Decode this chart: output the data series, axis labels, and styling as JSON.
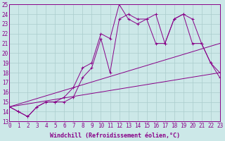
{
  "bg_color": "#cce8e8",
  "line_color": "#880088",
  "grid_color": "#aacccc",
  "xlabel": "Windchill (Refroidissement éolien,°C)",
  "xlabel_fontsize": 6.0,
  "tick_fontsize": 5.5,
  "xmin": 0,
  "xmax": 23,
  "ymin": 13,
  "ymax": 25,
  "series": [
    {
      "x": [
        0,
        1,
        2,
        3,
        4,
        5,
        6,
        7,
        8,
        9,
        10,
        11,
        12,
        13,
        14,
        15,
        16,
        17,
        18,
        19,
        20,
        21,
        22,
        23
      ],
      "y": [
        14.5,
        14.0,
        13.5,
        14.5,
        15.0,
        15.0,
        15.0,
        15.5,
        17.5,
        18.5,
        21.5,
        18.0,
        23.5,
        24.0,
        23.5,
        23.5,
        21.0,
        21.0,
        23.5,
        24.0,
        23.5,
        21.0,
        19.0,
        18.0
      ]
    },
    {
      "x": [
        0,
        1,
        2,
        3,
        4,
        5,
        6,
        7,
        8,
        9,
        10,
        11,
        12,
        13,
        14,
        15,
        16,
        17,
        18,
        19,
        20,
        21,
        22,
        23
      ],
      "y": [
        14.5,
        14.0,
        13.5,
        14.5,
        15.0,
        15.0,
        15.5,
        16.5,
        18.5,
        19.0,
        22.0,
        21.5,
        25.0,
        23.5,
        23.0,
        23.5,
        24.0,
        21.0,
        23.5,
        24.0,
        21.0,
        21.0,
        19.0,
        17.5
      ]
    },
    {
      "x": [
        0,
        23
      ],
      "y": [
        14.5,
        18.0
      ]
    },
    {
      "x": [
        0,
        23
      ],
      "y": [
        14.5,
        21.0
      ]
    }
  ]
}
